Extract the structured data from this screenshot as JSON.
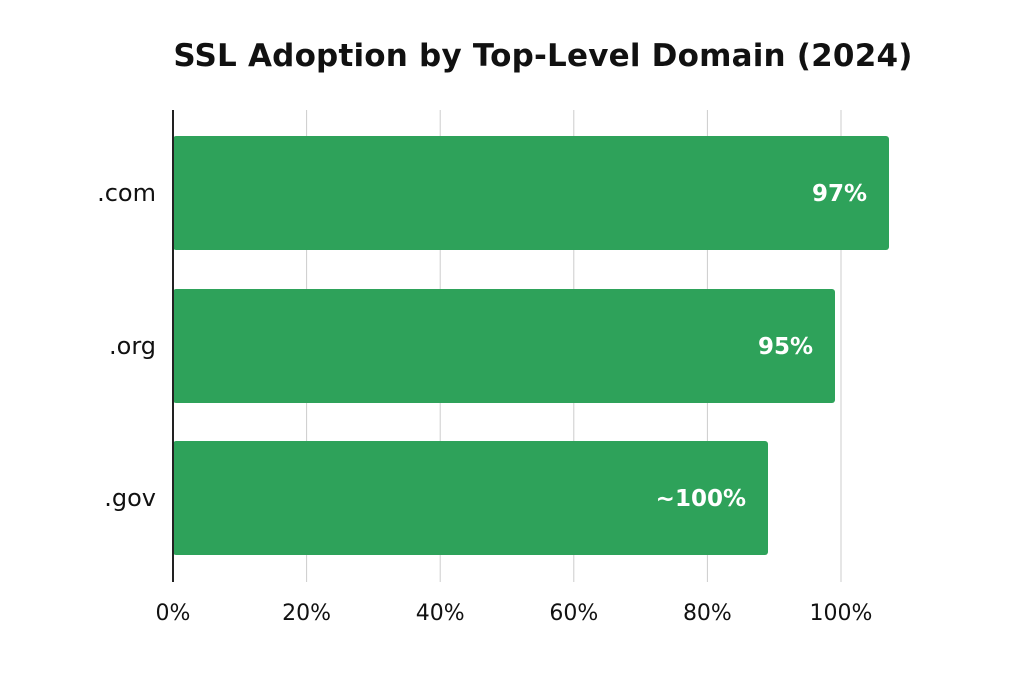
{
  "chart_data": {
    "type": "bar",
    "orientation": "horizontal",
    "title": "SSL Adoption by Top-Level Domain (2024)",
    "xlabel": "",
    "ylabel": "",
    "categories": [
      ".com",
      ".org",
      ".gov"
    ],
    "values": [
      97,
      95,
      100
    ],
    "value_labels": [
      "97%",
      "95%",
      "~100%"
    ],
    "xlim": [
      0,
      100
    ],
    "x_ticks": [
      0,
      20,
      40,
      60,
      80,
      100
    ],
    "x_tick_labels": [
      "0%",
      "20%",
      "40%",
      "60%",
      "80%",
      "100%"
    ],
    "grid": "vertical",
    "legend": "none",
    "bar_color": "#2ea25a",
    "label_color": "#ffffff",
    "axis_color": "#222222",
    "grid_color": "#cccccc"
  }
}
